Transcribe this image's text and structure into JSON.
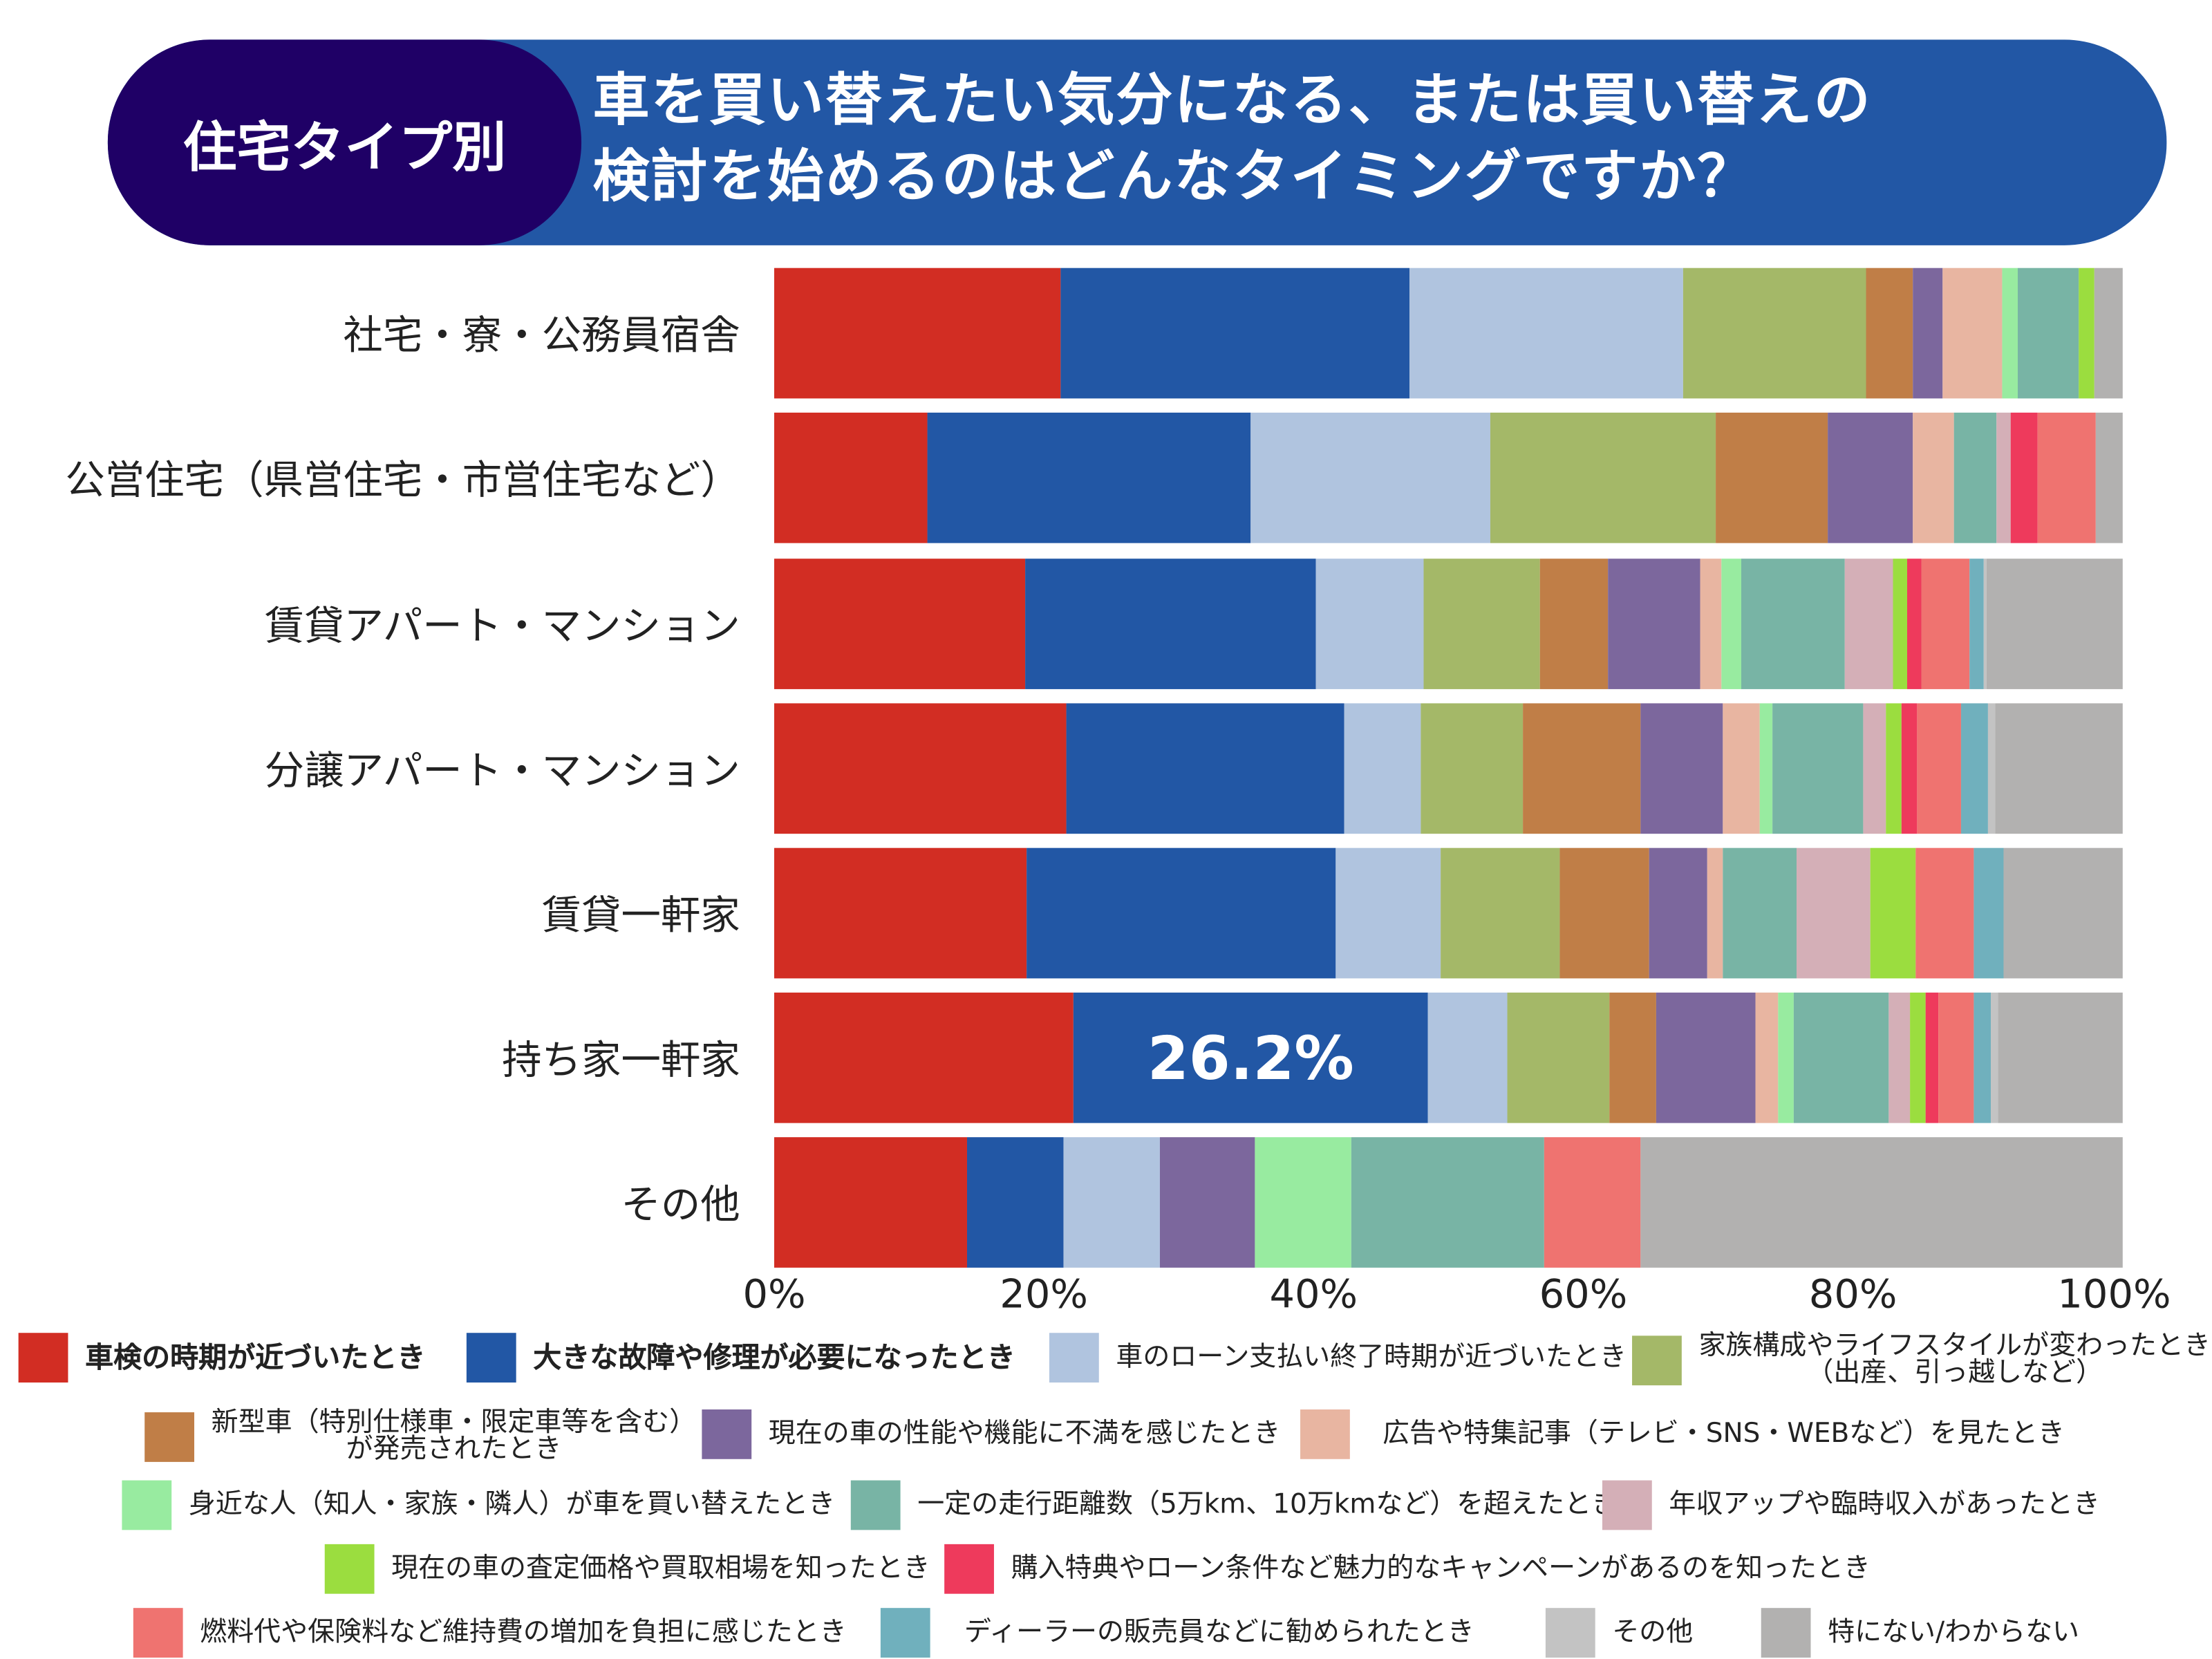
{
  "header": {
    "tag": "住宅タイプ別",
    "title": "車を買い替えたい気分になる、または買い替えの\n検討を始めるのはどんなタイミングですか？"
  },
  "chart_data": {
    "type": "bar",
    "orientation": "horizontal",
    "stacked": "100%",
    "title": "車を買い替えたい気分になる、または買い替えの検討を始めるのはどんなタイミングですか？",
    "categories": [
      "社宅・寮・公務員宿舎",
      "公営住宅（県営住宅・市営住宅など）",
      "賃貸アパート・マンション",
      "分譲アパート・マンション",
      "賃貸一軒家",
      "持ち家一軒家",
      "その他"
    ],
    "xlim": [
      0,
      100
    ],
    "xticks": [
      "0%",
      "20%",
      "40%",
      "60%",
      "80%",
      "100%"
    ],
    "grid": false,
    "legend_position": "bottom",
    "series": [
      {
        "name": "車検の時期が近づいたとき",
        "color": "#d22d23",
        "values": [
          21.3,
          11.4,
          18.7,
          21.7,
          18.7,
          22.2,
          14.3
        ]
      },
      {
        "name": "大きな故障や修理が必要になったとき",
        "color": "#2257a5",
        "values": [
          25.9,
          23.9,
          21.6,
          20.6,
          23.0,
          26.2,
          7.1
        ]
      },
      {
        "name": "車のローン支払い終了時期が近づいたとき",
        "color": "#b0c4df",
        "values": [
          20.3,
          17.8,
          8.0,
          5.6,
          7.8,
          5.9,
          7.1
        ]
      },
      {
        "name": "家族構成やライフスタイルが変わったとき\n（出産、引っ越しなど）",
        "color": "#a4b868",
        "values": [
          13.6,
          16.7,
          8.6,
          7.6,
          8.8,
          7.6,
          0
        ]
      },
      {
        "name": "新型車（特別仕様車・限定車等を含む）\nが発売されたとき",
        "color": "#c07e47",
        "values": [
          3.4,
          8.3,
          5.1,
          8.8,
          6.6,
          3.4,
          0
        ]
      },
      {
        "name": "現在の車の性能や機能に不満を感じたとき",
        "color": "#7c679d",
        "values": [
          2.2,
          6.3,
          6.8,
          6.0,
          4.4,
          7.4,
          7.1
        ]
      },
      {
        "name": "広告や特集記事（テレビ・SNS・WEBなど）を見たとき",
        "color": "#e8b5a1",
        "values": [
          4.5,
          3.1,
          1.6,
          2.8,
          1.1,
          1.7,
          0
        ]
      },
      {
        "name": "身近な人（知人・家族・隣人）が車を買い替えたとき",
        "color": "#98eba0",
        "values": [
          1.1,
          0,
          1.5,
          0.9,
          0,
          1.1,
          7.1
        ]
      },
      {
        "name": "一定の走行距離数（5万km、10万kmなど）を超えたとき",
        "color": "#78b4a5",
        "values": [
          4.5,
          3.1,
          7.7,
          6.8,
          5.5,
          7.1,
          14.3
        ]
      },
      {
        "name": "年収アップや臨時収入があったとき",
        "color": "#d4afb7",
        "values": [
          0,
          1.1,
          3.5,
          1.6,
          5.5,
          1.6,
          0
        ]
      },
      {
        "name": "現在の車の査定価格や買取相場を知ったとき",
        "color": "#9bdd3f",
        "values": [
          1.2,
          0,
          1.1,
          1.2,
          3.3,
          1.1,
          0
        ]
      },
      {
        "name": "購入特典やローン条件など魅力的なキャンペーンがあるのを知ったとき",
        "color": "#ee3a5c",
        "values": [
          0,
          2.0,
          1.1,
          1.2,
          0,
          0.9,
          0
        ]
      },
      {
        "name": "燃料代や保険料など維持費の増加を負担に感じたとき",
        "color": "#ef7370",
        "values": [
          0,
          4.3,
          3.5,
          3.2,
          4.4,
          2.7,
          7.1
        ]
      },
      {
        "name": "ディーラーの販売員などに勧められたとき",
        "color": "#70b0bd",
        "values": [
          0,
          0,
          1.1,
          2.0,
          2.2,
          1.2,
          0
        ]
      },
      {
        "name": "その他",
        "color": "#c3c3c3",
        "values": [
          0,
          0,
          0.2,
          0.5,
          0,
          0.6,
          0
        ]
      },
      {
        "name": "特にない/わからない",
        "color": "#b2b1b0",
        "values": [
          2.1,
          2.0,
          10.1,
          9.5,
          8.8,
          9.2,
          35.7
        ]
      }
    ],
    "annotations": [
      {
        "category": "持ち家一軒家",
        "series": "大きな故障や修理が必要になったとき",
        "text": "26.2%"
      }
    ]
  }
}
